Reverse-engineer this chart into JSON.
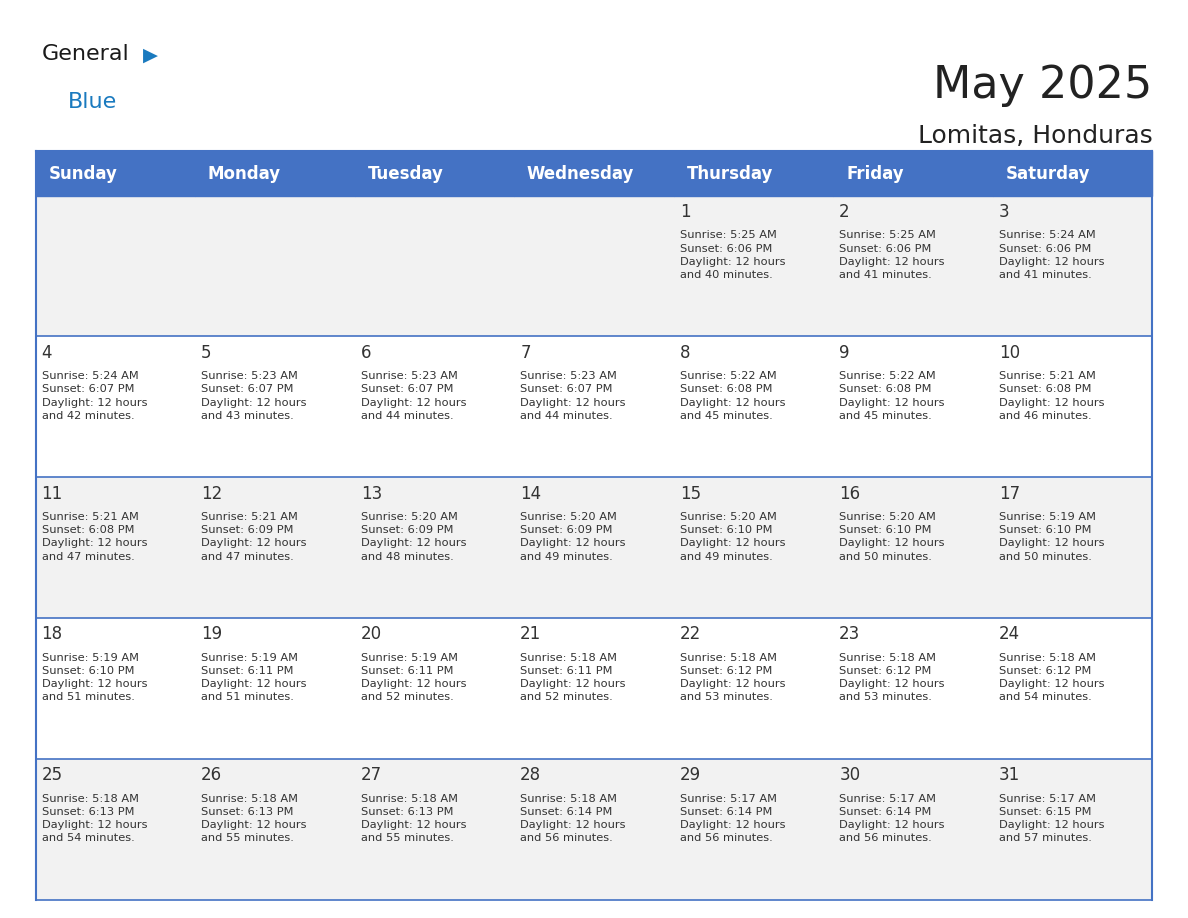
{
  "title": "May 2025",
  "subtitle": "Lomitas, Honduras",
  "days_of_week": [
    "Sunday",
    "Monday",
    "Tuesday",
    "Wednesday",
    "Thursday",
    "Friday",
    "Saturday"
  ],
  "header_bg": "#4472C4",
  "header_text": "#FFFFFF",
  "cell_bg_even": "#F2F2F2",
  "cell_bg_odd": "#FFFFFF",
  "cell_border": "#4472C4",
  "day_num_color": "#333333",
  "text_color": "#333333",
  "title_color": "#222222",
  "subtitle_color": "#222222",
  "generalblue_black": "#1a1a1a",
  "generalblue_blue": "#1a7abf",
  "generalblue_triangle": "#1a7abf",
  "weeks": [
    [
      {
        "day": 0,
        "info": ""
      },
      {
        "day": 0,
        "info": ""
      },
      {
        "day": 0,
        "info": ""
      },
      {
        "day": 0,
        "info": ""
      },
      {
        "day": 1,
        "info": "Sunrise: 5:25 AM\nSunset: 6:06 PM\nDaylight: 12 hours\nand 40 minutes."
      },
      {
        "day": 2,
        "info": "Sunrise: 5:25 AM\nSunset: 6:06 PM\nDaylight: 12 hours\nand 41 minutes."
      },
      {
        "day": 3,
        "info": "Sunrise: 5:24 AM\nSunset: 6:06 PM\nDaylight: 12 hours\nand 41 minutes."
      }
    ],
    [
      {
        "day": 4,
        "info": "Sunrise: 5:24 AM\nSunset: 6:07 PM\nDaylight: 12 hours\nand 42 minutes."
      },
      {
        "day": 5,
        "info": "Sunrise: 5:23 AM\nSunset: 6:07 PM\nDaylight: 12 hours\nand 43 minutes."
      },
      {
        "day": 6,
        "info": "Sunrise: 5:23 AM\nSunset: 6:07 PM\nDaylight: 12 hours\nand 44 minutes."
      },
      {
        "day": 7,
        "info": "Sunrise: 5:23 AM\nSunset: 6:07 PM\nDaylight: 12 hours\nand 44 minutes."
      },
      {
        "day": 8,
        "info": "Sunrise: 5:22 AM\nSunset: 6:08 PM\nDaylight: 12 hours\nand 45 minutes."
      },
      {
        "day": 9,
        "info": "Sunrise: 5:22 AM\nSunset: 6:08 PM\nDaylight: 12 hours\nand 45 minutes."
      },
      {
        "day": 10,
        "info": "Sunrise: 5:21 AM\nSunset: 6:08 PM\nDaylight: 12 hours\nand 46 minutes."
      }
    ],
    [
      {
        "day": 11,
        "info": "Sunrise: 5:21 AM\nSunset: 6:08 PM\nDaylight: 12 hours\nand 47 minutes."
      },
      {
        "day": 12,
        "info": "Sunrise: 5:21 AM\nSunset: 6:09 PM\nDaylight: 12 hours\nand 47 minutes."
      },
      {
        "day": 13,
        "info": "Sunrise: 5:20 AM\nSunset: 6:09 PM\nDaylight: 12 hours\nand 48 minutes."
      },
      {
        "day": 14,
        "info": "Sunrise: 5:20 AM\nSunset: 6:09 PM\nDaylight: 12 hours\nand 49 minutes."
      },
      {
        "day": 15,
        "info": "Sunrise: 5:20 AM\nSunset: 6:10 PM\nDaylight: 12 hours\nand 49 minutes."
      },
      {
        "day": 16,
        "info": "Sunrise: 5:20 AM\nSunset: 6:10 PM\nDaylight: 12 hours\nand 50 minutes."
      },
      {
        "day": 17,
        "info": "Sunrise: 5:19 AM\nSunset: 6:10 PM\nDaylight: 12 hours\nand 50 minutes."
      }
    ],
    [
      {
        "day": 18,
        "info": "Sunrise: 5:19 AM\nSunset: 6:10 PM\nDaylight: 12 hours\nand 51 minutes."
      },
      {
        "day": 19,
        "info": "Sunrise: 5:19 AM\nSunset: 6:11 PM\nDaylight: 12 hours\nand 51 minutes."
      },
      {
        "day": 20,
        "info": "Sunrise: 5:19 AM\nSunset: 6:11 PM\nDaylight: 12 hours\nand 52 minutes."
      },
      {
        "day": 21,
        "info": "Sunrise: 5:18 AM\nSunset: 6:11 PM\nDaylight: 12 hours\nand 52 minutes."
      },
      {
        "day": 22,
        "info": "Sunrise: 5:18 AM\nSunset: 6:12 PM\nDaylight: 12 hours\nand 53 minutes."
      },
      {
        "day": 23,
        "info": "Sunrise: 5:18 AM\nSunset: 6:12 PM\nDaylight: 12 hours\nand 53 minutes."
      },
      {
        "day": 24,
        "info": "Sunrise: 5:18 AM\nSunset: 6:12 PM\nDaylight: 12 hours\nand 54 minutes."
      }
    ],
    [
      {
        "day": 25,
        "info": "Sunrise: 5:18 AM\nSunset: 6:13 PM\nDaylight: 12 hours\nand 54 minutes."
      },
      {
        "day": 26,
        "info": "Sunrise: 5:18 AM\nSunset: 6:13 PM\nDaylight: 12 hours\nand 55 minutes."
      },
      {
        "day": 27,
        "info": "Sunrise: 5:18 AM\nSunset: 6:13 PM\nDaylight: 12 hours\nand 55 minutes."
      },
      {
        "day": 28,
        "info": "Sunrise: 5:18 AM\nSunset: 6:14 PM\nDaylight: 12 hours\nand 56 minutes."
      },
      {
        "day": 29,
        "info": "Sunrise: 5:17 AM\nSunset: 6:14 PM\nDaylight: 12 hours\nand 56 minutes."
      },
      {
        "day": 30,
        "info": "Sunrise: 5:17 AM\nSunset: 6:14 PM\nDaylight: 12 hours\nand 56 minutes."
      },
      {
        "day": 31,
        "info": "Sunrise: 5:17 AM\nSunset: 6:15 PM\nDaylight: 12 hours\nand 57 minutes."
      }
    ]
  ]
}
